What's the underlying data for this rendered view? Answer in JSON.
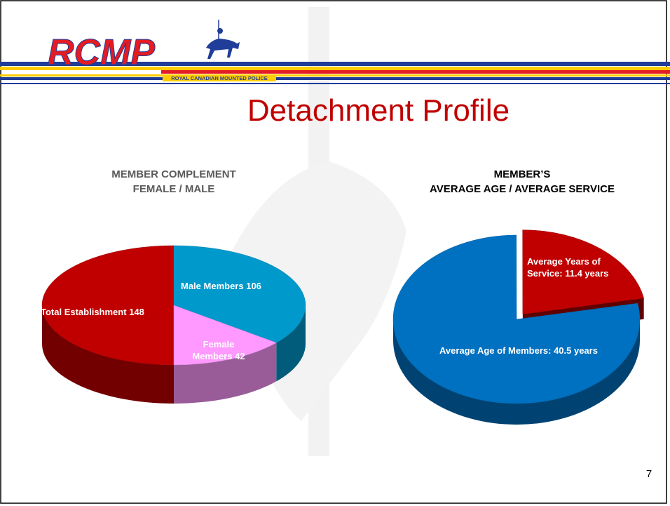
{
  "header": {
    "logo": "RCMP",
    "subtitle": "ROYAL CANADIAN MOUNTED POLICE"
  },
  "title": "Detachment Profile",
  "page_number": 7,
  "chart_data": [
    {
      "type": "pie",
      "title": "MEMBER COMPLEMENT\nFEMALE / MALE",
      "categories": [
        "Total Establishment",
        "Male Members",
        "Female Members"
      ],
      "values": [
        148,
        106,
        42
      ],
      "colors": [
        "#c00000",
        "#0099cc",
        "#ff99ff"
      ]
    },
    {
      "type": "pie",
      "title": "MEMBER’S\nAVERAGE AGE / AVERAGE SERVICE",
      "categories": [
        "Average Age of Members:",
        "Average Years of Service:"
      ],
      "values": [
        40.5,
        11.4
      ],
      "value_labels": [
        "40.5 years",
        "11.4 years"
      ],
      "colors": [
        "#0070c0",
        "#c00000"
      ]
    }
  ]
}
